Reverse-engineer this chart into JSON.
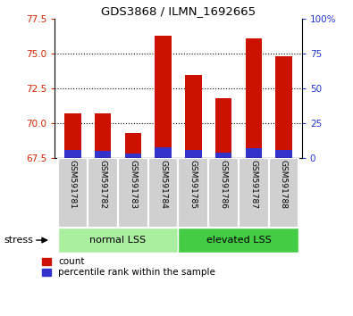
{
  "title": "GDS3868 / ILMN_1692665",
  "categories": [
    "GSM591781",
    "GSM591782",
    "GSM591783",
    "GSM591784",
    "GSM591785",
    "GSM591786",
    "GSM591787",
    "GSM591788"
  ],
  "red_values": [
    70.7,
    70.7,
    69.3,
    76.3,
    73.5,
    71.8,
    76.1,
    74.8
  ],
  "blue_values": [
    68.1,
    68.0,
    67.8,
    68.3,
    68.1,
    67.9,
    68.2,
    68.1
  ],
  "ylim_left": [
    67.5,
    77.5
  ],
  "ylim_right": [
    0,
    100
  ],
  "yticks_left": [
    67.5,
    70.0,
    72.5,
    75.0,
    77.5
  ],
  "yticks_right": [
    0,
    25,
    50,
    75,
    100
  ],
  "grid_lines": [
    70.0,
    72.5,
    75.0
  ],
  "group1_label": "normal LSS",
  "group1_indices": [
    0,
    1,
    2,
    3
  ],
  "group2_label": "elevated LSS",
  "group2_indices": [
    4,
    5,
    6,
    7
  ],
  "group1_color": "#aaeea0",
  "group2_color": "#44cc44",
  "stress_label": "stress",
  "legend_red": "count",
  "legend_blue": "percentile rank within the sample",
  "red_color": "#cc1100",
  "blue_color": "#3333cc",
  "bar_width": 0.55,
  "tick_label_color_left": "#cc2200",
  "tick_label_color_right": "#2233cc",
  "background_color": "#ffffff",
  "xticklabel_bg": "#d0d0d0"
}
